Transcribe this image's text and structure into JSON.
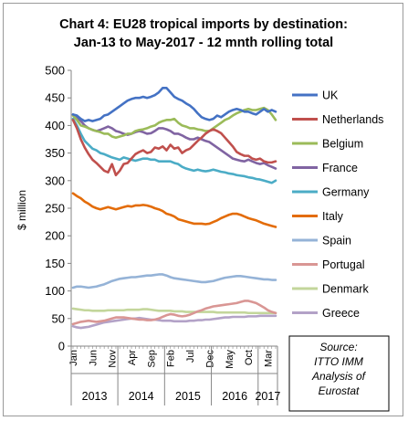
{
  "chart_data": {
    "type": "line",
    "title_line1": "Chart 4: EU28 tropical imports by destination:",
    "title_line2": "Jan-13 to May-2017 - 12 mnth rolling total",
    "ylabel": "$ million",
    "ylim": [
      0,
      500
    ],
    "yticks": [
      "0",
      "50",
      "100",
      "150",
      "200",
      "250",
      "300",
      "350",
      "400",
      "450",
      "500"
    ],
    "month_tick_labels": [
      "Jan",
      "Jun",
      "Nov",
      "Apr",
      "Sep",
      "Feb",
      "Jul",
      "Dec",
      "May",
      "Oct",
      "Mar"
    ],
    "month_tick_index": [
      0,
      5,
      10,
      15,
      20,
      25,
      30,
      35,
      40,
      45,
      50
    ],
    "year_labels": [
      "2013",
      "2014",
      "2015",
      "2016",
      "2017"
    ],
    "n_months": 53,
    "grid": false,
    "legend_position": "right",
    "source_note": [
      "Source:",
      "ITTO IMM",
      "Analysis of",
      "Eurostat"
    ],
    "series": [
      {
        "name": "UK",
        "color": "#4472c4",
        "values": [
          420,
          418,
          412,
          408,
          410,
          408,
          410,
          412,
          418,
          420,
          425,
          430,
          435,
          440,
          445,
          448,
          450,
          450,
          452,
          450,
          452,
          455,
          460,
          468,
          468,
          460,
          452,
          448,
          445,
          440,
          436,
          430,
          422,
          415,
          412,
          410,
          412,
          418,
          415,
          420,
          425,
          428,
          430,
          428,
          425,
          425,
          422,
          420,
          425,
          430,
          425,
          428,
          425
        ]
      },
      {
        "name": "Netherlands",
        "color": "#c0504d",
        "values": [
          410,
          395,
          375,
          360,
          348,
          338,
          332,
          325,
          318,
          315,
          330,
          310,
          318,
          330,
          332,
          340,
          348,
          352,
          355,
          350,
          352,
          360,
          358,
          362,
          355,
          365,
          358,
          360,
          350,
          355,
          358,
          365,
          372,
          378,
          385,
          390,
          393,
          390,
          386,
          378,
          370,
          362,
          352,
          348,
          345,
          345,
          340,
          338,
          340,
          335,
          333,
          333,
          335
        ]
      },
      {
        "name": "Belgium",
        "color": "#9bbb59",
        "values": [
          418,
          410,
          400,
          398,
          395,
          392,
          390,
          388,
          385,
          385,
          380,
          378,
          380,
          382,
          385,
          385,
          390,
          392,
          393,
          395,
          398,
          400,
          405,
          408,
          410,
          410,
          412,
          405,
          400,
          398,
          395,
          395,
          393,
          392,
          390,
          390,
          395,
          400,
          405,
          410,
          413,
          418,
          422,
          425,
          428,
          430,
          428,
          428,
          430,
          432,
          428,
          420,
          410
        ]
      },
      {
        "name": "France",
        "color": "#8064a2",
        "values": [
          420,
          415,
          408,
          400,
          395,
          392,
          390,
          392,
          395,
          398,
          395,
          390,
          388,
          385,
          383,
          385,
          388,
          390,
          388,
          385,
          386,
          390,
          395,
          395,
          393,
          390,
          385,
          385,
          382,
          378,
          375,
          375,
          378,
          375,
          372,
          370,
          365,
          360,
          355,
          350,
          345,
          340,
          338,
          336,
          335,
          338,
          335,
          332,
          330,
          332,
          328,
          325,
          322
        ]
      },
      {
        "name": "Germany",
        "color": "#4bacc6",
        "values": [
          412,
          400,
          385,
          372,
          365,
          358,
          355,
          350,
          348,
          345,
          342,
          340,
          338,
          342,
          340,
          338,
          336,
          338,
          340,
          340,
          338,
          338,
          335,
          335,
          335,
          335,
          332,
          330,
          325,
          322,
          320,
          318,
          320,
          318,
          317,
          318,
          320,
          318,
          316,
          315,
          313,
          312,
          310,
          309,
          308,
          306,
          305,
          303,
          302,
          300,
          298,
          296,
          300
        ]
      },
      {
        "name": "Italy",
        "color": "#e36c09",
        "values": [
          277,
          272,
          268,
          262,
          258,
          253,
          250,
          248,
          250,
          252,
          250,
          248,
          250,
          252,
          254,
          253,
          255,
          255,
          256,
          255,
          253,
          250,
          248,
          245,
          240,
          238,
          235,
          230,
          228,
          226,
          224,
          222,
          222,
          222,
          221,
          222,
          225,
          228,
          232,
          235,
          238,
          240,
          240,
          238,
          235,
          232,
          230,
          228,
          225,
          222,
          220,
          218,
          216
        ]
      },
      {
        "name": "Spain",
        "color": "#95b3d7",
        "values": [
          106,
          108,
          108,
          107,
          106,
          107,
          108,
          110,
          112,
          115,
          118,
          120,
          122,
          123,
          124,
          125,
          125,
          126,
          127,
          128,
          128,
          129,
          130,
          130,
          128,
          125,
          123,
          122,
          121,
          120,
          119,
          118,
          117,
          116,
          116,
          117,
          118,
          120,
          122,
          124,
          125,
          126,
          127,
          127,
          126,
          125,
          124,
          123,
          122,
          121,
          121,
          120,
          120
        ]
      },
      {
        "name": "Portugal",
        "color": "#d99694",
        "values": [
          40,
          42,
          44,
          45,
          46,
          45,
          44,
          45,
          46,
          48,
          50,
          52,
          52,
          52,
          51,
          50,
          49,
          48,
          48,
          47,
          47,
          48,
          50,
          53,
          56,
          58,
          57,
          55,
          54,
          55,
          57,
          60,
          63,
          65,
          68,
          70,
          72,
          73,
          74,
          75,
          76,
          77,
          78,
          80,
          82,
          82,
          80,
          78,
          74,
          70,
          65,
          62,
          60
        ]
      },
      {
        "name": "Denmark",
        "color": "#c3d69b",
        "values": [
          68,
          67,
          66,
          65,
          65,
          64,
          64,
          64,
          64,
          65,
          65,
          65,
          65,
          65,
          66,
          66,
          66,
          66,
          67,
          67,
          66,
          65,
          64,
          64,
          64,
          64,
          63,
          63,
          63,
          62,
          62,
          62,
          62,
          62,
          62,
          62,
          62,
          61,
          61,
          61,
          61,
          61,
          61,
          61,
          61,
          60,
          60,
          60,
          60,
          60,
          60,
          60,
          60
        ]
      },
      {
        "name": "Greece",
        "color": "#b3a2c7",
        "values": [
          36,
          34,
          33,
          34,
          35,
          37,
          39,
          41,
          43,
          44,
          45,
          46,
          47,
          48,
          49,
          50,
          50,
          51,
          50,
          49,
          48,
          48,
          47,
          46,
          46,
          46,
          45,
          45,
          45,
          45,
          46,
          46,
          47,
          47,
          48,
          48,
          49,
          50,
          51,
          52,
          52,
          53,
          53,
          53,
          53,
          54,
          54,
          54,
          55,
          55,
          55,
          55,
          55
        ]
      }
    ]
  }
}
